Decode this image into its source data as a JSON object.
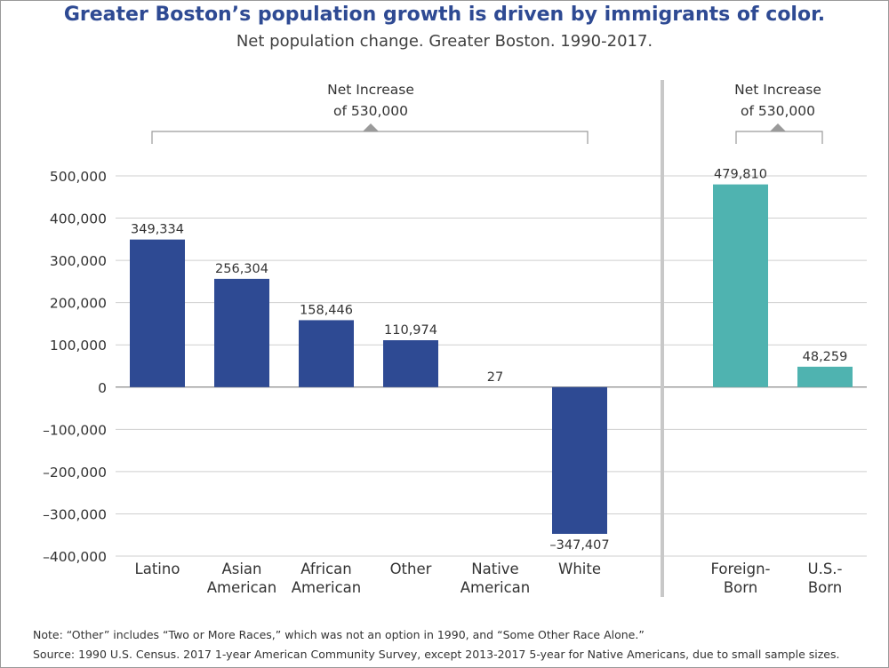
{
  "title": "Greater Boston’s population growth is driven by immigrants of color.",
  "subtitle": "Net population change. Greater Boston. 1990-2017.",
  "notes": {
    "note": "Note: “Other” includes “Two or More Races,” which was not an option in 1990, and “Some Other Race Alone.”",
    "source": "Source: 1990 U.S. Census. 2017 1-year American Community Survey, except 2013-2017 5-year for Native Americans, due to small sample sizes."
  },
  "colors": {
    "race": "#2e4a93",
    "nativity": "#4fb3b0",
    "divider": "#c8c8c8",
    "grid": "#cfcfcf",
    "text": "#333333"
  },
  "chart_data": {
    "type": "bar",
    "ylim": [
      -400000,
      500000
    ],
    "yticks": [
      500000,
      400000,
      300000,
      200000,
      100000,
      0,
      -100000,
      -200000,
      -300000,
      -400000
    ],
    "ytick_labels": [
      "500,000",
      "400,000",
      "300,000",
      "200,000",
      "100,000",
      "0",
      "–100,000",
      "–200,000",
      "–300,000",
      "–400,000"
    ],
    "groups": [
      {
        "name": "race",
        "bracket_label": [
          "Net Increase",
          "of 530,000"
        ],
        "bars": [
          {
            "label": [
              "Latino"
            ],
            "value": 349334,
            "value_label": "349,334"
          },
          {
            "label": [
              "Asian",
              "American"
            ],
            "value": 256304,
            "value_label": "256,304"
          },
          {
            "label": [
              "African",
              "American"
            ],
            "value": 158446,
            "value_label": "158,446"
          },
          {
            "label": [
              "Other"
            ],
            "value": 110974,
            "value_label": "110,974"
          },
          {
            "label": [
              "Native",
              "American"
            ],
            "value": 27,
            "value_label": "27"
          },
          {
            "label": [
              "White"
            ],
            "value": -347407,
            "value_label": "–347,407"
          }
        ]
      },
      {
        "name": "nativity",
        "bracket_label": [
          "Net Increase",
          "of 530,000"
        ],
        "bars": [
          {
            "label": [
              "Foreign-",
              "Born"
            ],
            "value": 479810,
            "value_label": "479,810"
          },
          {
            "label": [
              "U.S.-",
              "Born"
            ],
            "value": 48259,
            "value_label": "48,259"
          }
        ]
      }
    ]
  }
}
